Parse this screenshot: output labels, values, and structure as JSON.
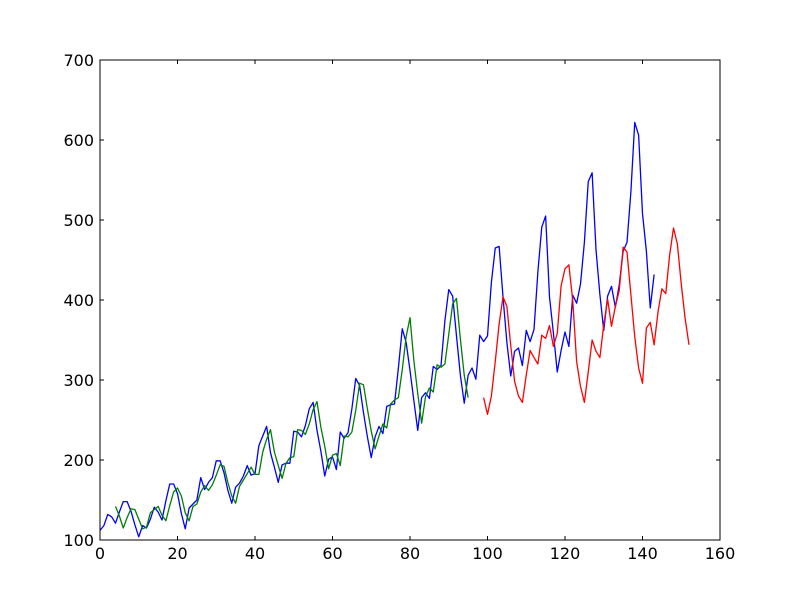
{
  "chart_data": {
    "type": "line",
    "title": "",
    "xlabel": "",
    "ylabel": "",
    "xlim": [
      0,
      160
    ],
    "ylim": [
      100,
      700
    ],
    "xticks": [
      0,
      20,
      40,
      60,
      80,
      100,
      120,
      140,
      160
    ],
    "yticks": [
      100,
      200,
      300,
      400,
      500,
      600,
      700
    ],
    "xtick_labels": [
      "0",
      "20",
      "40",
      "60",
      "80",
      "100",
      "120",
      "140",
      "160"
    ],
    "ytick_labels": [
      "100",
      "200",
      "300",
      "400",
      "500",
      "600",
      "700"
    ],
    "grid": false,
    "legend": "none",
    "series": [
      {
        "color": "#0000ff",
        "x_start": 0,
        "values": [
          112,
          118,
          132,
          129,
          121,
          135,
          148,
          148,
          136,
          119,
          104,
          118,
          115,
          126,
          141,
          135,
          125,
          149,
          170,
          170,
          158,
          133,
          114,
          140,
          145,
          150,
          178,
          163,
          172,
          178,
          199,
          199,
          184,
          162,
          146,
          166,
          171,
          180,
          193,
          181,
          183,
          218,
          230,
          242,
          209,
          191,
          172,
          194,
          196,
          196,
          236,
          235,
          229,
          243,
          264,
          272,
          237,
          211,
          180,
          201,
          204,
          188,
          235,
          227,
          234,
          264,
          302,
          293,
          259,
          229,
          203,
          229,
          242,
          233,
          267,
          269,
          270,
          315,
          364,
          347,
          312,
          274,
          237,
          278,
          284,
          277,
          317,
          313,
          318,
          374,
          413,
          405,
          355,
          306,
          271,
          306,
          315,
          301,
          356,
          348,
          355,
          422,
          465,
          467,
          404,
          347,
          305,
          336,
          340,
          318,
          362,
          348,
          363,
          435,
          491,
          505,
          404,
          359,
          310,
          337,
          360,
          342,
          406,
          396,
          420,
          472,
          548,
          559,
          463,
          407,
          362,
          405,
          417,
          391,
          419,
          461,
          472,
          535,
          622,
          606,
          508,
          461,
          390,
          432
        ]
      },
      {
        "color": "#008000",
        "x_start": 4,
        "values": [
          142,
          130,
          115,
          128,
          139,
          138,
          126,
          114,
          116,
          134,
          138,
          142,
          131,
          124,
          143,
          160,
          165,
          155,
          134,
          124,
          142,
          145,
          160,
          168,
          162,
          169,
          181,
          194,
          192,
          172,
          155,
          146,
          167,
          175,
          183,
          191,
          182,
          182,
          210,
          226,
          238,
          210,
          193,
          177,
          196,
          203,
          204,
          238,
          237,
          232,
          245,
          263,
          273,
          241,
          217,
          189,
          206,
          208,
          193,
          230,
          229,
          235,
          262,
          296,
          294,
          264,
          236,
          214,
          230,
          245,
          240,
          270,
          275,
          278,
          313,
          354,
          378,
          324,
          283,
          246,
          279,
          290,
          285,
          319,
          316,
          320,
          357,
          395,
          402,
          351,
          306,
          278
        ]
      },
      {
        "color": "#ff0000",
        "x_start": 99,
        "values": [
          278,
          257,
          280,
          323,
          370,
          404,
          392,
          343,
          298,
          280,
          272,
          306,
          337,
          328,
          320,
          356,
          352,
          368,
          342,
          358,
          418,
          439,
          444,
          399,
          323,
          292,
          272,
          310,
          350,
          336,
          328,
          369,
          401,
          367,
          392,
          412,
          466,
          460,
          407,
          354,
          315,
          296,
          365,
          372,
          344,
          385,
          414,
          408,
          456,
          490,
          470,
          420,
          377,
          344
        ]
      }
    ]
  }
}
